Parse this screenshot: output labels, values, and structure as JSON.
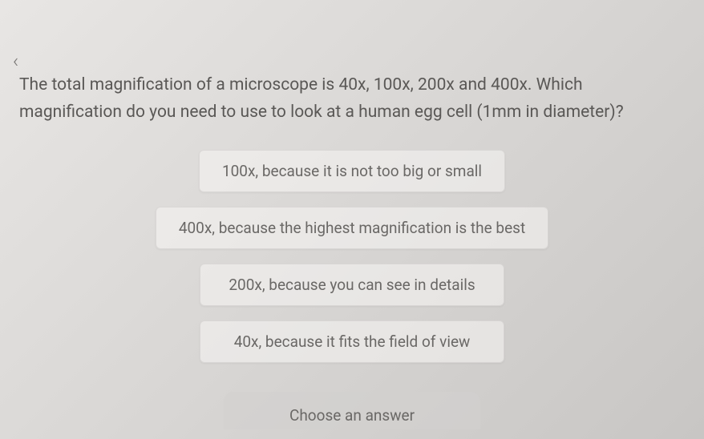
{
  "navigation": {
    "back_icon": "‹"
  },
  "question": {
    "text": "The total magnification of a microscope is 40x, 100x, 200x and 400x. Which magnification do you need to use to look at a human egg cell (1mm in diameter)?"
  },
  "options": [
    {
      "label": "100x, because it is not too big or small"
    },
    {
      "label": "400x, because the highest magnification is the best"
    },
    {
      "label": "200x, because you can see in details"
    },
    {
      "label": "40x, because it fits the field of view"
    }
  ],
  "action": {
    "choose_label": "Choose an answer"
  },
  "colors": {
    "text_primary": "#5a5856",
    "text_secondary": "#6a6866",
    "option_bg": "rgba(248,246,244,0.55)",
    "page_bg_start": "#e8e6e4",
    "page_bg_end": "#c8c6c4"
  }
}
